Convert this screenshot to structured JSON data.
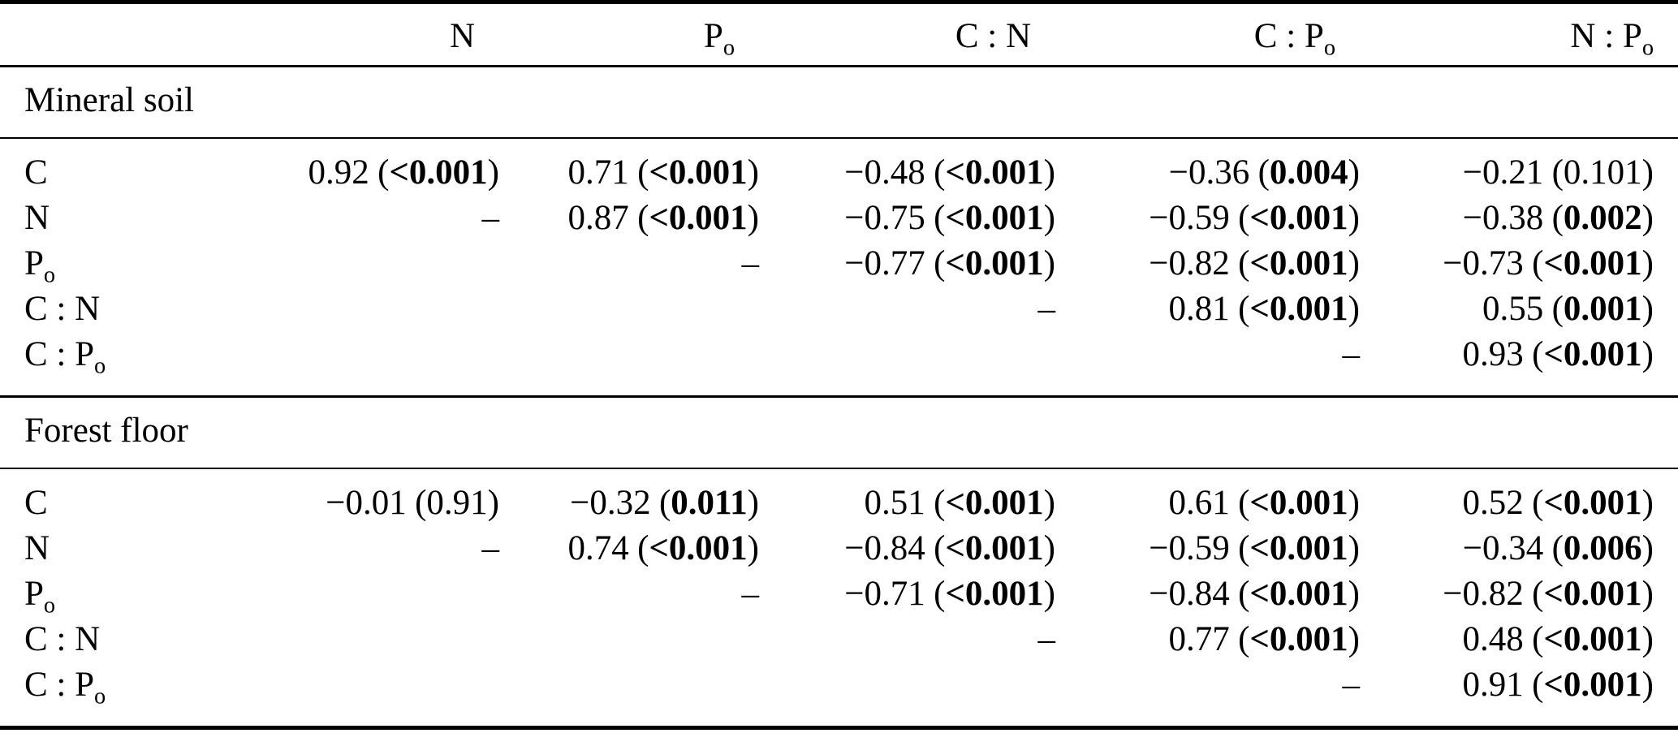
{
  "page": {
    "background": "#ffffff",
    "text_color": "#000000",
    "rule_color": "#000000"
  },
  "table": {
    "corner_label": "",
    "punct": {
      "open": "(",
      "close": ")",
      "dash": "–"
    },
    "columns": [
      {
        "name": "N",
        "segments": [
          {
            "t": "N"
          }
        ]
      },
      {
        "name": "Po",
        "segments": [
          {
            "t": "P"
          },
          {
            "t": "o",
            "sub": true
          }
        ]
      },
      {
        "name": "C:N",
        "segments": [
          {
            "t": "C : N"
          }
        ]
      },
      {
        "name": "C:Po",
        "segments": [
          {
            "t": "C : P"
          },
          {
            "t": "o",
            "sub": true
          }
        ]
      },
      {
        "name": "N:Po",
        "segments": [
          {
            "t": "N : P"
          },
          {
            "t": "o",
            "sub": true
          }
        ]
      }
    ],
    "sections": [
      {
        "title": "Mineral soil",
        "rows": [
          {
            "label": {
              "segments": [
                {
                  "t": "C"
                }
              ]
            },
            "cells": [
              {
                "r": "0.92",
                "p": "<0.001",
                "sig": true
              },
              {
                "r": "0.71",
                "p": "<0.001",
                "sig": true
              },
              {
                "r": "−0.48",
                "p": "<0.001",
                "sig": true
              },
              {
                "r": "−0.36",
                "p": "0.004",
                "sig": true
              },
              {
                "r": "−0.21",
                "p": "0.101",
                "sig": false
              }
            ]
          },
          {
            "label": {
              "segments": [
                {
                  "t": "N"
                }
              ]
            },
            "cells": [
              {
                "dash": true
              },
              {
                "r": "0.87",
                "p": "<0.001",
                "sig": true
              },
              {
                "r": "−0.75",
                "p": "<0.001",
                "sig": true
              },
              {
                "r": "−0.59",
                "p": "<0.001",
                "sig": true
              },
              {
                "r": "−0.38",
                "p": "0.002",
                "sig": true
              }
            ]
          },
          {
            "label": {
              "segments": [
                {
                  "t": "P"
                },
                {
                  "t": "o",
                  "sub": true
                }
              ]
            },
            "cells": [
              null,
              {
                "dash": true
              },
              {
                "r": "−0.77",
                "p": "<0.001",
                "sig": true
              },
              {
                "r": "−0.82",
                "p": "<0.001",
                "sig": true
              },
              {
                "r": "−0.73",
                "p": "<0.001",
                "sig": true
              }
            ]
          },
          {
            "label": {
              "segments": [
                {
                  "t": "C : N"
                }
              ]
            },
            "cells": [
              null,
              null,
              {
                "dash": true
              },
              {
                "r": "0.81",
                "p": "<0.001",
                "sig": true
              },
              {
                "r": "0.55",
                "p": "0.001",
                "sig": true
              }
            ]
          },
          {
            "label": {
              "segments": [
                {
                  "t": "C : P"
                },
                {
                  "t": "o",
                  "sub": true
                }
              ]
            },
            "cells": [
              null,
              null,
              null,
              {
                "dash": true
              },
              {
                "r": "0.93",
                "p": "<0.001",
                "sig": true
              }
            ]
          }
        ]
      },
      {
        "title": "Forest floor",
        "rows": [
          {
            "label": {
              "segments": [
                {
                  "t": "C"
                }
              ]
            },
            "cells": [
              {
                "r": "−0.01",
                "p": "0.91",
                "sig": false
              },
              {
                "r": "−0.32",
                "p": "0.011",
                "sig": true
              },
              {
                "r": "0.51",
                "p": "<0.001",
                "sig": true
              },
              {
                "r": "0.61",
                "p": "<0.001",
                "sig": true
              },
              {
                "r": "0.52",
                "p": "<0.001",
                "sig": true
              }
            ]
          },
          {
            "label": {
              "segments": [
                {
                  "t": "N"
                }
              ]
            },
            "cells": [
              {
                "dash": true
              },
              {
                "r": "0.74",
                "p": "<0.001",
                "sig": true
              },
              {
                "r": "−0.84",
                "p": "<0.001",
                "sig": true
              },
              {
                "r": "−0.59",
                "p": "<0.001",
                "sig": true
              },
              {
                "r": "−0.34",
                "p": "0.006",
                "sig": true
              }
            ]
          },
          {
            "label": {
              "segments": [
                {
                  "t": "P"
                },
                {
                  "t": "o",
                  "sub": true
                }
              ]
            },
            "cells": [
              null,
              {
                "dash": true
              },
              {
                "r": "−0.71",
                "p": "<0.001",
                "sig": true
              },
              {
                "r": "−0.84",
                "p": "<0.001",
                "sig": true
              },
              {
                "r": "−0.82",
                "p": "<0.001",
                "sig": true
              }
            ]
          },
          {
            "label": {
              "segments": [
                {
                  "t": "C : N"
                }
              ]
            },
            "cells": [
              null,
              null,
              {
                "dash": true
              },
              {
                "r": "0.77",
                "p": "<0.001",
                "sig": true
              },
              {
                "r": "0.48",
                "p": "<0.001",
                "sig": true
              }
            ]
          },
          {
            "label": {
              "segments": [
                {
                  "t": "C : P"
                },
                {
                  "t": "o",
                  "sub": true
                }
              ]
            },
            "cells": [
              null,
              null,
              null,
              {
                "dash": true
              },
              {
                "r": "0.91",
                "p": "<0.001",
                "sig": true
              }
            ]
          }
        ]
      }
    ]
  }
}
